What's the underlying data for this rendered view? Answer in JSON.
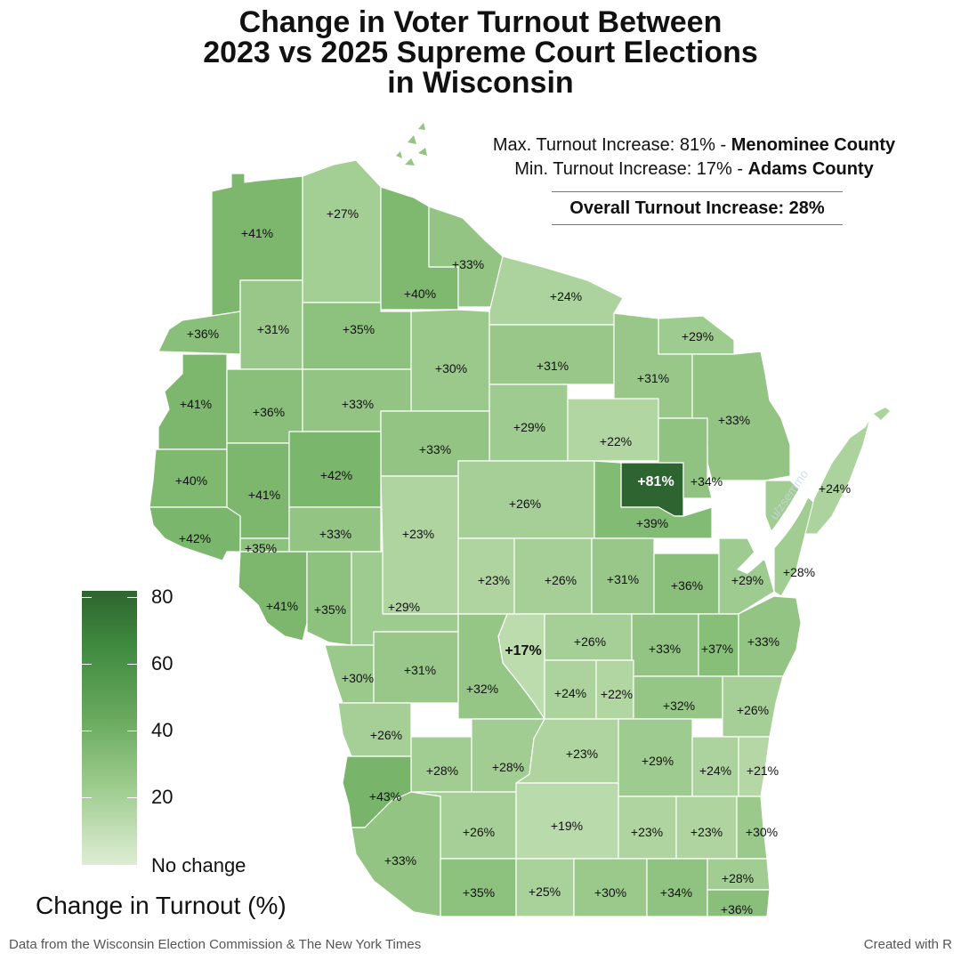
{
  "title_lines": [
    "Change in Voter Turnout Between",
    "2023 vs 2025 Supreme Court Elections",
    "in Wisconsin"
  ],
  "stats": {
    "max_prefix": "Max. Turnout Increase: 81% - ",
    "max_county": "Menominee County",
    "min_prefix": "Min. Turnout Increase: 17% - ",
    "min_county": "Adams County",
    "overall": "Overall Turnout Increase: 28%"
  },
  "legend": {
    "title": "Change in Turnout (%)",
    "labels": [
      "80",
      "60",
      "40",
      "20",
      "No change"
    ],
    "colors": {
      "high": "#2e6430",
      "low": "#dcedd3"
    }
  },
  "footer": {
    "source": "Data from the Wisconsin Election Commission & The New York Times",
    "credit": "Created with R"
  },
  "watermark": "u/zsemmo",
  "colors": {
    "border": "#ffffff",
    "water": "#ffffff",
    "scale_high": "#2e6430",
    "scale_low": "#dcedd3"
  },
  "counties": [
    {
      "label": "+41%",
      "value": 41
    },
    {
      "label": "+27%",
      "value": 27
    },
    {
      "label": "+40%",
      "value": 40
    },
    {
      "label": "+33%",
      "value": 33
    },
    {
      "label": "+36%",
      "value": 36
    },
    {
      "label": "+31%",
      "value": 31
    },
    {
      "label": "+35%",
      "value": 35
    },
    {
      "label": "+30%",
      "value": 30
    },
    {
      "label": "+24%",
      "value": 24
    },
    {
      "label": "+31%",
      "value": 31
    },
    {
      "label": "+29%",
      "value": 29
    },
    {
      "label": "+31%",
      "value": 31
    },
    {
      "label": "+41%",
      "value": 41
    },
    {
      "label": "+36%",
      "value": 36
    },
    {
      "label": "+33%",
      "value": 33
    },
    {
      "label": "+29%",
      "value": 29
    },
    {
      "label": "+33%",
      "value": 33
    },
    {
      "label": "+22%",
      "value": 22
    },
    {
      "label": "+33%",
      "value": 33
    },
    {
      "label": "+40%",
      "value": 40
    },
    {
      "label": "+41%",
      "value": 41
    },
    {
      "label": "+42%",
      "value": 42
    },
    {
      "label": "+26%",
      "value": 26
    },
    {
      "label": "+81%",
      "value": 81
    },
    {
      "label": "+34%",
      "value": 34
    },
    {
      "label": "+24%",
      "value": 24
    },
    {
      "label": "+39%",
      "value": 39
    },
    {
      "label": "+42%",
      "value": 42
    },
    {
      "label": "+35%",
      "value": 35
    },
    {
      "label": "+33%",
      "value": 33
    },
    {
      "label": "+23%",
      "value": 23
    },
    {
      "label": "+28%",
      "value": 28
    },
    {
      "label": "+23%",
      "value": 23
    },
    {
      "label": "+26%",
      "value": 26
    },
    {
      "label": "+31%",
      "value": 31
    },
    {
      "label": "+36%",
      "value": 36
    },
    {
      "label": "+29%",
      "value": 29
    },
    {
      "label": "+41%",
      "value": 41
    },
    {
      "label": "+35%",
      "value": 35
    },
    {
      "label": "+29%",
      "value": 29
    },
    {
      "label": "+17%",
      "value": 17
    },
    {
      "label": "+26%",
      "value": 26
    },
    {
      "label": "+33%",
      "value": 33
    },
    {
      "label": "+37%",
      "value": 37
    },
    {
      "label": "+33%",
      "value": 33
    },
    {
      "label": "+30%",
      "value": 30
    },
    {
      "label": "+31%",
      "value": 31
    },
    {
      "label": "+32%",
      "value": 32
    },
    {
      "label": "+24%",
      "value": 24
    },
    {
      "label": "+22%",
      "value": 22
    },
    {
      "label": "+32%",
      "value": 32
    },
    {
      "label": "+26%",
      "value": 26
    },
    {
      "label": "+26%",
      "value": 26
    },
    {
      "label": "+28%",
      "value": 28
    },
    {
      "label": "+28%",
      "value": 28
    },
    {
      "label": "+23%",
      "value": 23
    },
    {
      "label": "+29%",
      "value": 29
    },
    {
      "label": "+24%",
      "value": 24
    },
    {
      "label": "+21%",
      "value": 21
    },
    {
      "label": "+43%",
      "value": 43
    },
    {
      "label": "+26%",
      "value": 26
    },
    {
      "label": "+19%",
      "value": 19
    },
    {
      "label": "+23%",
      "value": 23
    },
    {
      "label": "+23%",
      "value": 23
    },
    {
      "label": "+30%",
      "value": 30
    },
    {
      "label": "+33%",
      "value": 33
    },
    {
      "label": "+35%",
      "value": 35
    },
    {
      "label": "+25%",
      "value": 25
    },
    {
      "label": "+30%",
      "value": 30
    },
    {
      "label": "+34%",
      "value": 34
    },
    {
      "label": "+28%",
      "value": 28
    },
    {
      "label": "+36%",
      "value": 36
    }
  ]
}
